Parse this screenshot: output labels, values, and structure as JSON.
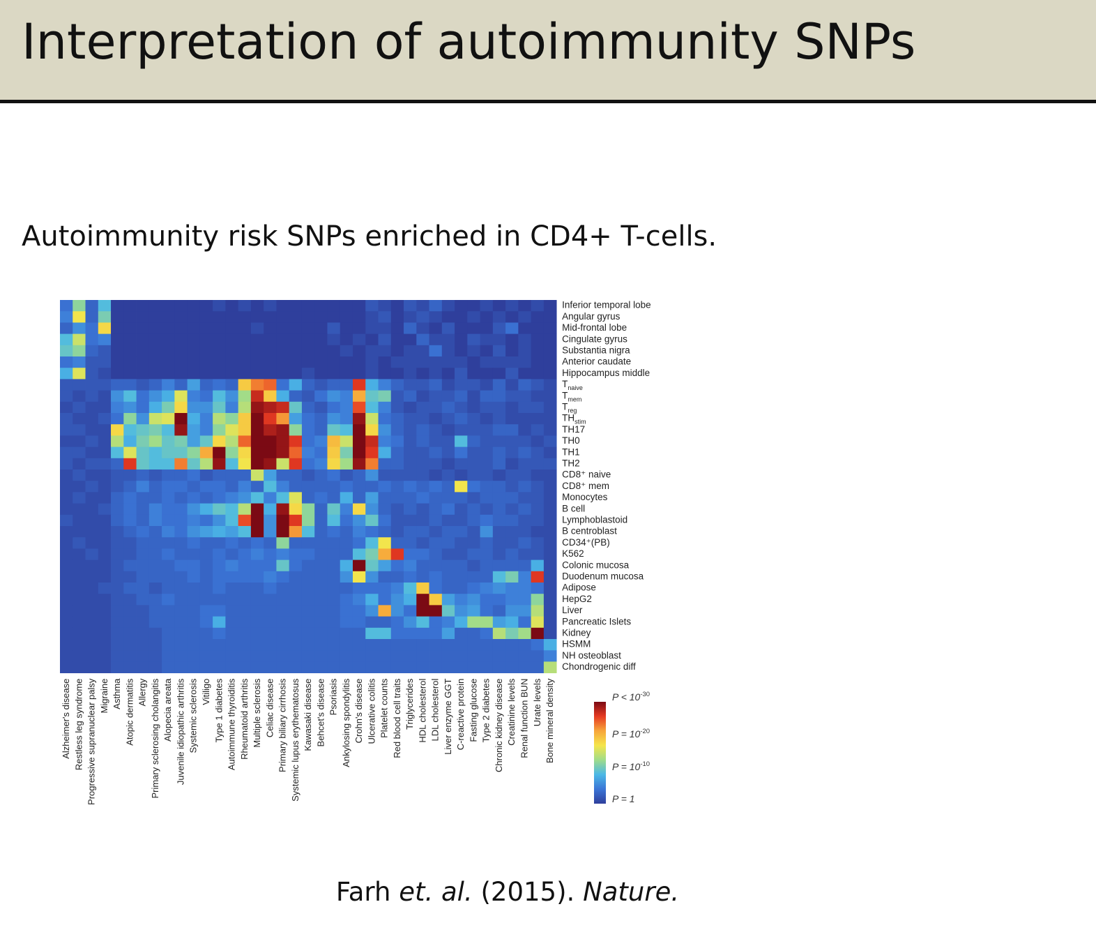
{
  "slide": {
    "title": "Interpretation of autoimmunity SNPs",
    "subtitle": "Autoimmunity risk SNPs enriched in CD4+ T-cells.",
    "citation": {
      "author": "Farh",
      "etal": "et. al.",
      "year": "(2015).",
      "journal": "Nature."
    }
  },
  "chart_data": {
    "type": "heatmap",
    "title": "",
    "columns": [
      "Alzheimer's disease",
      "Restless leg syndrome",
      "Progressive supranuclear palsy",
      "Migraine",
      "Asthma",
      "Atopic dermatitis",
      "Allergy",
      "Primary sclerosing cholangitis",
      "Alopecia areata",
      "Juvenile idiopathic arthritis",
      "Systemic sclerosis",
      "Vitiligo",
      "Type 1 diabetes",
      "Autoimmune thyroiditis",
      "Rheumatoid arthritis",
      "Multiple sclerosis",
      "Celiac disease",
      "Primary biliary cirrhosis",
      "Systemic lupus erythematosus",
      "Kawasaki disease",
      "Behcet's disease",
      "Psoriasis",
      "Ankylosing spondylitis",
      "Crohn's disease",
      "Ulcerative colitis",
      "Platelet counts",
      "Red blood cell traits",
      "Triglycerides",
      "HDL cholesterol",
      "LDL cholesterol",
      "Liver enzyme GGT",
      "C-reactive protein",
      "Fasting glucose",
      "Type 2 diabetes",
      "Chronic kidney disease",
      "Creatinine levels",
      "Renal function BUN",
      "Urate levels",
      "Bone mineral density"
    ],
    "rows": [
      {
        "label": "Inferior temporal lobe"
      },
      {
        "label": "Angular gyrus"
      },
      {
        "label": "Mid-frontal lobe"
      },
      {
        "label": "Cingulate gyrus"
      },
      {
        "label": "Substantia nigra"
      },
      {
        "label": "Anterior caudate"
      },
      {
        "label": "Hippocampus middle"
      },
      {
        "label": "T",
        "sub": "naive"
      },
      {
        "label": "T",
        "sub": "mem"
      },
      {
        "label": "T",
        "sub": "reg"
      },
      {
        "label": "TH",
        "sub": "stim"
      },
      {
        "label": "TH17"
      },
      {
        "label": "TH0"
      },
      {
        "label": "TH1"
      },
      {
        "label": "TH2"
      },
      {
        "label": "CD8⁺ naive"
      },
      {
        "label": "CD8⁺ mem"
      },
      {
        "label": "Monocytes"
      },
      {
        "label": "B cell"
      },
      {
        "label": "Lymphoblastoid"
      },
      {
        "label": "B centroblast"
      },
      {
        "label": "CD34⁺(PB)"
      },
      {
        "label": "K562"
      },
      {
        "label": "Colonic mucosa"
      },
      {
        "label": "Duodenum mucosa"
      },
      {
        "label": "Adipose"
      },
      {
        "label": "HepG2"
      },
      {
        "label": "Liver"
      },
      {
        "label": "Pancreatic Islets"
      },
      {
        "label": "Kidney"
      },
      {
        "label": "HSMM"
      },
      {
        "label": "NH osteoblast"
      },
      {
        "label": "Chondrogenic diff"
      }
    ],
    "scale_note": "cell value = enrichment -log10(P); 0 = P 1, 30 = P < 10^-30",
    "values": [
      [
        4,
        12,
        3,
        9,
        0,
        0,
        0,
        0,
        0,
        0,
        0,
        0,
        1,
        0,
        1,
        0,
        1,
        0,
        0,
        0,
        0,
        0,
        0,
        0,
        2,
        1,
        0,
        2,
        1,
        3,
        1,
        0,
        0,
        1,
        0,
        1,
        0,
        1,
        0
      ],
      [
        5,
        17,
        3,
        11,
        0,
        0,
        0,
        0,
        0,
        0,
        0,
        0,
        0,
        0,
        0,
        0,
        0,
        0,
        0,
        0,
        0,
        0,
        0,
        0,
        1,
        2,
        0,
        1,
        2,
        1,
        0,
        0,
        1,
        0,
        1,
        0,
        1,
        0,
        0
      ],
      [
        3,
        6,
        4,
        18,
        0,
        0,
        0,
        0,
        0,
        0,
        0,
        0,
        0,
        0,
        0,
        1,
        0,
        0,
        0,
        0,
        0,
        2,
        0,
        0,
        1,
        1,
        0,
        3,
        1,
        0,
        2,
        0,
        0,
        0,
        2,
        4,
        0,
        0,
        0
      ],
      [
        9,
        15,
        4,
        5,
        0,
        0,
        0,
        0,
        0,
        0,
        0,
        0,
        0,
        0,
        0,
        0,
        0,
        0,
        0,
        0,
        0,
        1,
        0,
        1,
        0,
        2,
        0,
        0,
        3,
        1,
        1,
        0,
        2,
        1,
        1,
        0,
        1,
        0,
        0
      ],
      [
        10,
        12,
        3,
        2,
        0,
        0,
        0,
        0,
        0,
        0,
        0,
        0,
        0,
        0,
        0,
        0,
        0,
        0,
        0,
        0,
        0,
        0,
        1,
        0,
        1,
        1,
        0,
        1,
        1,
        4,
        1,
        0,
        1,
        0,
        2,
        0,
        1,
        0,
        0
      ],
      [
        4,
        5,
        2,
        2,
        0,
        0,
        0,
        0,
        0,
        0,
        0,
        0,
        0,
        0,
        0,
        0,
        0,
        0,
        0,
        0,
        0,
        0,
        0,
        0,
        1,
        0,
        1,
        1,
        1,
        1,
        1,
        1,
        0,
        1,
        1,
        1,
        1,
        0,
        0
      ],
      [
        8,
        16,
        2,
        1,
        0,
        0,
        0,
        0,
        0,
        0,
        0,
        0,
        0,
        0,
        0,
        0,
        0,
        0,
        0,
        1,
        0,
        0,
        0,
        0,
        1,
        0,
        0,
        1,
        0,
        1,
        0,
        2,
        0,
        0,
        0,
        2,
        0,
        0,
        0
      ],
      [
        2,
        2,
        2,
        2,
        3,
        3,
        2,
        3,
        5,
        3,
        7,
        3,
        4,
        3,
        19,
        23,
        24,
        4,
        8,
        3,
        2,
        3,
        3,
        26,
        8,
        5,
        3,
        2,
        2,
        3,
        1,
        2,
        2,
        1,
        3,
        1,
        3,
        2,
        1
      ],
      [
        2,
        1,
        2,
        1,
        6,
        9,
        4,
        6,
        8,
        16,
        5,
        4,
        9,
        6,
        13,
        27,
        19,
        8,
        3,
        2,
        4,
        6,
        5,
        21,
        10,
        11,
        2,
        3,
        1,
        2,
        2,
        3,
        1,
        3,
        3,
        2,
        2,
        1,
        1
      ],
      [
        1,
        2,
        1,
        1,
        5,
        6,
        4,
        8,
        11,
        18,
        6,
        6,
        10,
        5,
        14,
        29,
        28,
        27,
        10,
        3,
        2,
        4,
        5,
        25,
        9,
        5,
        2,
        1,
        2,
        2,
        3,
        2,
        1,
        2,
        2,
        1,
        2,
        2,
        1
      ],
      [
        2,
        1,
        1,
        2,
        4,
        12,
        6,
        15,
        16,
        30,
        8,
        5,
        14,
        12,
        19,
        30,
        26,
        22,
        7,
        4,
        3,
        6,
        5,
        29,
        15,
        4,
        3,
        2,
        2,
        1,
        2,
        3,
        2,
        1,
        2,
        1,
        1,
        1,
        1
      ],
      [
        2,
        2,
        1,
        1,
        18,
        9,
        10,
        11,
        9,
        29,
        7,
        5,
        12,
        16,
        19,
        30,
        28,
        29,
        12,
        4,
        3,
        10,
        9,
        30,
        18,
        6,
        3,
        2,
        3,
        2,
        1,
        2,
        2,
        2,
        3,
        3,
        1,
        2,
        1
      ],
      [
        1,
        1,
        2,
        1,
        14,
        8,
        11,
        13,
        10,
        11,
        7,
        10,
        18,
        14,
        24,
        30,
        30,
        29,
        26,
        4,
        5,
        20,
        15,
        30,
        27,
        5,
        4,
        2,
        3,
        2,
        2,
        9,
        3,
        2,
        2,
        2,
        2,
        1,
        2
      ],
      [
        2,
        2,
        1,
        1,
        9,
        16,
        10,
        9,
        10,
        10,
        12,
        21,
        30,
        12,
        18,
        30,
        30,
        29,
        24,
        5,
        4,
        19,
        11,
        30,
        26,
        8,
        3,
        2,
        2,
        3,
        2,
        4,
        2,
        2,
        3,
        2,
        3,
        2,
        1
      ],
      [
        2,
        1,
        2,
        2,
        3,
        26,
        10,
        9,
        9,
        23,
        10,
        14,
        29,
        9,
        17,
        30,
        29,
        15,
        26,
        4,
        5,
        18,
        13,
        29,
        23,
        3,
        3,
        2,
        2,
        2,
        1,
        2,
        2,
        2,
        3,
        1,
        2,
        2,
        2
      ],
      [
        1,
        2,
        1,
        1,
        2,
        2,
        3,
        2,
        3,
        3,
        4,
        2,
        3,
        3,
        3,
        15,
        7,
        3,
        3,
        2,
        3,
        4,
        2,
        3,
        6,
        2,
        2,
        2,
        2,
        1,
        2,
        1,
        2,
        2,
        1,
        2,
        2,
        1,
        1
      ],
      [
        1,
        1,
        2,
        1,
        2,
        3,
        5,
        3,
        4,
        4,
        3,
        4,
        4,
        3,
        5,
        3,
        9,
        5,
        3,
        3,
        3,
        3,
        4,
        3,
        3,
        4,
        3,
        4,
        3,
        4,
        3,
        17,
        4,
        3,
        3,
        2,
        3,
        2,
        1
      ],
      [
        1,
        2,
        1,
        1,
        3,
        4,
        3,
        3,
        4,
        3,
        4,
        3,
        4,
        5,
        6,
        9,
        5,
        9,
        16,
        3,
        4,
        3,
        8,
        3,
        7,
        3,
        3,
        3,
        4,
        3,
        3,
        3,
        2,
        3,
        3,
        3,
        2,
        2,
        1
      ],
      [
        1,
        1,
        1,
        2,
        3,
        4,
        3,
        5,
        4,
        4,
        6,
        8,
        10,
        9,
        14,
        30,
        8,
        29,
        18,
        12,
        3,
        10,
        5,
        18,
        6,
        3,
        2,
        3,
        2,
        3,
        4,
        2,
        3,
        2,
        3,
        2,
        3,
        2,
        1
      ],
      [
        2,
        1,
        1,
        1,
        3,
        4,
        3,
        5,
        4,
        4,
        5,
        4,
        6,
        9,
        25,
        30,
        6,
        30,
        26,
        12,
        3,
        9,
        4,
        6,
        10,
        4,
        2,
        2,
        2,
        3,
        2,
        2,
        3,
        4,
        3,
        3,
        2,
        2,
        1
      ],
      [
        1,
        1,
        1,
        1,
        2,
        3,
        4,
        3,
        5,
        4,
        6,
        7,
        8,
        7,
        9,
        30,
        6,
        30,
        22,
        9,
        3,
        4,
        3,
        5,
        4,
        3,
        2,
        3,
        3,
        2,
        3,
        3,
        2,
        6,
        2,
        2,
        2,
        1,
        1
      ],
      [
        1,
        2,
        1,
        1,
        2,
        2,
        3,
        3,
        3,
        3,
        4,
        3,
        3,
        4,
        3,
        4,
        3,
        12,
        3,
        3,
        3,
        3,
        3,
        4,
        9,
        17,
        3,
        3,
        2,
        3,
        3,
        2,
        2,
        3,
        2,
        2,
        3,
        2,
        1
      ],
      [
        1,
        1,
        2,
        1,
        2,
        2,
        3,
        3,
        4,
        3,
        3,
        3,
        4,
        3,
        4,
        5,
        4,
        5,
        4,
        4,
        3,
        3,
        3,
        9,
        11,
        21,
        26,
        4,
        4,
        3,
        2,
        2,
        3,
        3,
        2,
        3,
        2,
        2,
        1
      ],
      [
        1,
        1,
        1,
        1,
        2,
        3,
        3,
        3,
        3,
        4,
        4,
        3,
        4,
        5,
        4,
        4,
        4,
        10,
        4,
        3,
        3,
        3,
        8,
        30,
        10,
        7,
        4,
        5,
        3,
        3,
        3,
        3,
        2,
        3,
        3,
        3,
        3,
        8,
        1
      ],
      [
        1,
        1,
        1,
        1,
        2,
        2,
        3,
        3,
        3,
        3,
        4,
        3,
        4,
        4,
        4,
        4,
        5,
        4,
        3,
        3,
        3,
        3,
        6,
        17,
        6,
        3,
        3,
        4,
        3,
        4,
        3,
        3,
        3,
        3,
        9,
        11,
        5,
        26,
        1
      ],
      [
        1,
        1,
        1,
        2,
        2,
        3,
        3,
        2,
        3,
        3,
        3,
        3,
        4,
        3,
        3,
        3,
        4,
        3,
        3,
        3,
        3,
        3,
        3,
        4,
        4,
        4,
        5,
        9,
        19,
        4,
        3,
        3,
        4,
        5,
        6,
        5,
        5,
        4,
        1
      ],
      [
        1,
        1,
        1,
        1,
        2,
        2,
        3,
        3,
        4,
        3,
        3,
        3,
        3,
        3,
        3,
        3,
        3,
        3,
        3,
        3,
        3,
        3,
        4,
        5,
        8,
        4,
        6,
        8,
        30,
        19,
        7,
        5,
        6,
        4,
        4,
        5,
        5,
        12,
        1
      ],
      [
        1,
        1,
        1,
        1,
        2,
        2,
        2,
        3,
        3,
        3,
        3,
        4,
        4,
        3,
        3,
        3,
        3,
        3,
        3,
        3,
        3,
        3,
        4,
        4,
        6,
        21,
        6,
        4,
        30,
        30,
        10,
        6,
        7,
        4,
        3,
        6,
        6,
        14,
        1
      ],
      [
        1,
        1,
        1,
        1,
        2,
        2,
        2,
        3,
        3,
        3,
        3,
        4,
        8,
        3,
        3,
        3,
        3,
        3,
        3,
        3,
        3,
        3,
        4,
        4,
        3,
        3,
        4,
        6,
        9,
        4,
        5,
        8,
        13,
        13,
        7,
        8,
        4,
        16,
        1
      ],
      [
        1,
        1,
        1,
        1,
        2,
        2,
        2,
        2,
        3,
        3,
        3,
        3,
        4,
        3,
        3,
        3,
        3,
        3,
        3,
        3,
        3,
        3,
        3,
        3,
        9,
        9,
        4,
        4,
        4,
        4,
        7,
        3,
        3,
        4,
        14,
        11,
        13,
        30,
        1
      ],
      [
        1,
        1,
        1,
        1,
        2,
        2,
        2,
        2,
        3,
        3,
        3,
        3,
        3,
        3,
        3,
        3,
        3,
        3,
        3,
        3,
        3,
        3,
        3,
        3,
        3,
        3,
        3,
        3,
        3,
        3,
        3,
        3,
        3,
        3,
        3,
        3,
        3,
        4,
        8
      ],
      [
        1,
        1,
        1,
        1,
        2,
        2,
        2,
        2,
        3,
        3,
        3,
        3,
        3,
        3,
        3,
        3,
        3,
        3,
        3,
        3,
        3,
        3,
        3,
        3,
        3,
        3,
        3,
        3,
        3,
        3,
        3,
        3,
        3,
        3,
        3,
        3,
        3,
        3,
        5
      ],
      [
        1,
        1,
        1,
        1,
        2,
        2,
        2,
        2,
        3,
        3,
        3,
        3,
        3,
        3,
        3,
        3,
        3,
        3,
        3,
        3,
        3,
        3,
        3,
        3,
        3,
        3,
        3,
        3,
        3,
        3,
        3,
        3,
        3,
        3,
        3,
        3,
        3,
        3,
        14
      ]
    ],
    "colorbar": {
      "colors": [
        "#2f3f9c",
        "#3b75d6",
        "#4bb8e6",
        "#9fdc8a",
        "#f5e54a",
        "#f7a63a",
        "#e63a22",
        "#7b0a14"
      ],
      "labels": [
        {
          "prefix": "P < 10",
          "sup": "-30",
          "value": 30
        },
        {
          "prefix": "P = 10",
          "sup": "-20",
          "value": 20
        },
        {
          "prefix": "P = 10",
          "sup": "-10",
          "value": 10
        },
        {
          "prefix": "P = 1",
          "sup": "",
          "value": 0
        }
      ]
    }
  }
}
